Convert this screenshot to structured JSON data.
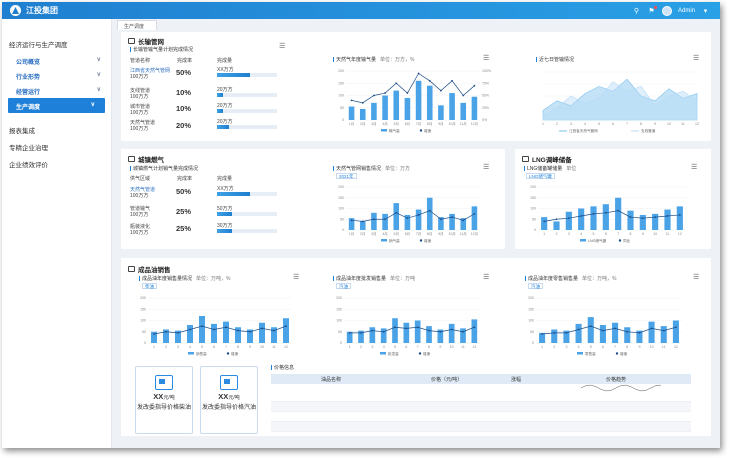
{
  "app": {
    "title": "江投集团",
    "user": "Admin"
  },
  "colors": {
    "accent": "#1e80d9",
    "bar": "#4aa3e6",
    "line": "#1f4f8a"
  },
  "tabs": [
    {
      "label": "生产调度"
    }
  ],
  "sidebar": {
    "group": "经济运行与生产调度",
    "items": [
      {
        "label": "公司概览"
      },
      {
        "label": "行业形势"
      },
      {
        "label": "经营运行"
      },
      {
        "label": "生产调度"
      }
    ],
    "plain": [
      {
        "label": "报表集成"
      },
      {
        "label": "专精企业治理"
      },
      {
        "label": "企业绩效评价"
      }
    ]
  },
  "long_pipeline": {
    "title": "长输管网",
    "table_title": "长输管输气量计划完成情况",
    "headers": [
      "管道名称",
      "完成率",
      "完成量"
    ],
    "rows": [
      {
        "name": "江西省天然气管网",
        "unit": "100万方",
        "pct": "50%",
        "value": "XX万方",
        "fill": 0.55
      },
      {
        "name": "支线管道",
        "unit": "100万方",
        "pct": "10%",
        "value": "20万方",
        "fill": 0.1
      },
      {
        "name": "城市管道",
        "unit": "100万方",
        "pct": "10%",
        "value": "20万方",
        "fill": 0.1
      },
      {
        "name": "天然气管道",
        "unit": "100万方",
        "pct": "20%",
        "value": "20万方",
        "fill": 0.2
      }
    ],
    "chart_title": "天然气年度输气量",
    "chart_unit": "单位：万方，%",
    "area_title": "近七日管输情况"
  },
  "city_gas": {
    "title": "城镇燃气",
    "table_title": "城镇燃气计划销气量完成情况",
    "headers": [
      "供气区域",
      "完成率",
      "完成量"
    ],
    "rows": [
      {
        "name": "天然气管道",
        "unit": "100万方",
        "pct": "50%",
        "value": "XX万方",
        "fill": 0.55
      },
      {
        "name": "管道输气",
        "unit": "100万方",
        "pct": "25%",
        "value": "50万方",
        "fill": 0.25
      },
      {
        "name": "瓶装液化",
        "unit": "100万方",
        "pct": "25%",
        "value": "30万方",
        "fill": 0.25
      }
    ],
    "chart_title": "天然气管网销售情况",
    "chart_unit": "单位：万方",
    "select": "2021年"
  },
  "lng": {
    "title": "LNG调峰储备",
    "chart_title": "LNG储备罐储量",
    "chart_unit": "单位",
    "select": "LNG储气罐"
  },
  "refined_oil": {
    "title": "成品油销售",
    "charts": [
      {
        "title": "成品油年度销售量情况",
        "unit": "单位：万吨，%",
        "select": "柴油"
      },
      {
        "title": "成品油年度批发销售量",
        "unit": "单位：万吨",
        "select": "汽油"
      },
      {
        "title": "成品油年度零售销售量",
        "unit": "单位：万吨，%",
        "select": "汽油"
      }
    ],
    "cards": [
      {
        "value": "XX",
        "unit": "元/吨",
        "name": "发改委指导价格柴油"
      },
      {
        "value": "XX",
        "unit": "元/吨",
        "name": "发改委指导价格汽油"
      }
    ],
    "table_title": "价格信息",
    "table_headers": [
      "油品名称",
      "价格（元/吨）",
      "涨幅",
      "价格趋势"
    ]
  },
  "chart_data": [
    {
      "type": "bar",
      "title": "天然气年度输气量",
      "categories": [
        "1月",
        "2月",
        "3月",
        "4月",
        "5月",
        "6月",
        "7月",
        "8月",
        "9月",
        "10月",
        "11月",
        "12月"
      ],
      "ylim": [
        0,
        200
      ],
      "y2lim": [
        0,
        100
      ],
      "yticks": [
        "0",
        "50",
        "100",
        "150",
        "200"
      ],
      "y2ticks": [
        "0%",
        "25%",
        "50%",
        "75%",
        "100%"
      ],
      "series": [
        {
          "name": "输气量",
          "type": "bar",
          "values": [
            55,
            45,
            70,
            100,
            120,
            90,
            160,
            140,
            60,
            110,
            70,
            95
          ]
        },
        {
          "name": "增速",
          "type": "line",
          "values": [
            40,
            35,
            50,
            55,
            75,
            55,
            95,
            80,
            60,
            80,
            50,
            70
          ]
        }
      ]
    },
    {
      "type": "area",
      "title": "近七日管输情况",
      "categories": [
        "1",
        "2",
        "3",
        "4",
        "5",
        "6",
        "7",
        "8",
        "9",
        "10",
        "11",
        "12"
      ],
      "series": [
        {
          "name": "江西省天然气管网",
          "values": [
            20,
            40,
            30,
            55,
            70,
            60,
            85,
            50,
            40,
            65,
            45,
            55
          ]
        },
        {
          "name": "支线管道",
          "values": [
            10,
            25,
            50,
            35,
            45,
            80,
            60,
            70,
            30,
            50,
            60,
            40
          ]
        }
      ]
    },
    {
      "type": "bar",
      "title": "天然气管网销售情况",
      "categories": [
        "1月",
        "2月",
        "3月",
        "4月",
        "5月",
        "6月",
        "7月",
        "8月",
        "9月",
        "10月",
        "11月",
        "12月"
      ],
      "ylim": [
        0,
        200
      ],
      "yticks": [
        "0",
        "50",
        "100",
        "150",
        "200"
      ],
      "series": [
        {
          "name": "销气量",
          "type": "bar",
          "values": [
            55,
            40,
            80,
            75,
            125,
            70,
            95,
            150,
            60,
            75,
            55,
            110
          ]
        },
        {
          "name": "增速",
          "type": "line",
          "values": [
            45,
            40,
            50,
            50,
            80,
            55,
            70,
            90,
            50,
            60,
            45,
            75
          ]
        }
      ]
    },
    {
      "type": "bar",
      "title": "LNG储备罐储量",
      "categories": [
        "1",
        "2",
        "3",
        "4",
        "5",
        "6",
        "7",
        "8",
        "9",
        "10",
        "11",
        "12"
      ],
      "ylim": [
        0,
        200
      ],
      "yticks": [
        "0",
        "50",
        "100",
        "150",
        "200"
      ],
      "series": [
        {
          "name": "LNG储气罐",
          "type": "bar",
          "values": [
            60,
            40,
            85,
            100,
            110,
            120,
            150,
            90,
            70,
            75,
            95,
            110
          ]
        },
        {
          "name": "同比",
          "type": "line",
          "values": [
            40,
            50,
            55,
            65,
            75,
            80,
            90,
            60,
            55,
            60,
            65,
            70
          ]
        }
      ]
    },
    {
      "type": "bar",
      "title": "成品油年度销售量情况",
      "categories": [
        "1",
        "2",
        "3",
        "4",
        "5",
        "6",
        "7",
        "8",
        "9",
        "10",
        "11",
        "12"
      ],
      "ylim": [
        0,
        200
      ],
      "yticks": [
        "0",
        "50",
        "100",
        "150",
        "200"
      ],
      "series": [
        {
          "name": "销售量",
          "type": "bar",
          "values": [
            50,
            60,
            55,
            80,
            120,
            85,
            95,
            70,
            60,
            90,
            70,
            110
          ]
        },
        {
          "name": "增速",
          "type": "line",
          "values": [
            40,
            50,
            45,
            60,
            75,
            60,
            70,
            55,
            50,
            65,
            55,
            75
          ]
        }
      ]
    },
    {
      "type": "bar",
      "title": "成品油年度批发销售量",
      "categories": [
        "1",
        "2",
        "3",
        "4",
        "5",
        "6",
        "7",
        "8",
        "9",
        "10",
        "11",
        "12"
      ],
      "ylim": [
        0,
        200
      ],
      "yticks": [
        "0",
        "50",
        "100",
        "150",
        "200"
      ],
      "series": [
        {
          "name": "批发量",
          "type": "bar",
          "values": [
            50,
            55,
            70,
            65,
            110,
            90,
            100,
            75,
            60,
            85,
            65,
            105
          ]
        },
        {
          "name": "增速",
          "type": "line",
          "values": [
            45,
            45,
            55,
            50,
            70,
            65,
            70,
            55,
            50,
            60,
            50,
            70
          ]
        }
      ]
    },
    {
      "type": "bar",
      "title": "成品油年度零售销售量",
      "categories": [
        "1",
        "2",
        "3",
        "4",
        "5",
        "6",
        "7",
        "8",
        "9",
        "10",
        "11",
        "12"
      ],
      "ylim": [
        0,
        200
      ],
      "yticks": [
        "0",
        "50",
        "100",
        "150",
        "200"
      ],
      "series": [
        {
          "name": "零售量",
          "type": "bar",
          "values": [
            45,
            60,
            55,
            85,
            115,
            80,
            90,
            70,
            55,
            95,
            75,
            100
          ]
        },
        {
          "name": "增速",
          "type": "line",
          "values": [
            40,
            45,
            45,
            60,
            75,
            55,
            65,
            50,
            45,
            65,
            55,
            70
          ]
        }
      ]
    }
  ]
}
